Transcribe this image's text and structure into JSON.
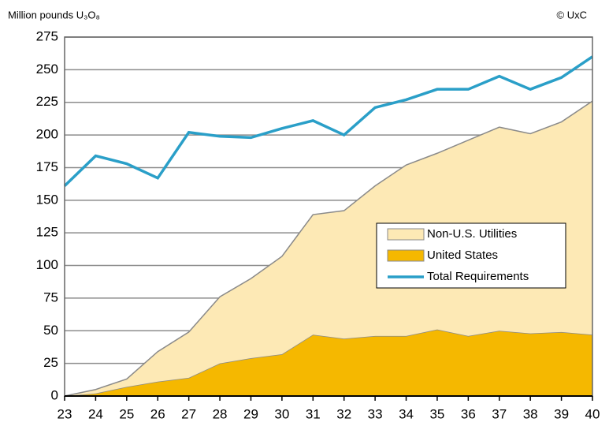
{
  "chart_data": {
    "type": "stacked-area-line",
    "y_label": "Million pounds U₃O₈",
    "source": "© UxC",
    "categories": [
      "23",
      "24",
      "25",
      "26",
      "27",
      "28",
      "29",
      "30",
      "31",
      "32",
      "33",
      "34",
      "35",
      "36",
      "37",
      "38",
      "39",
      "40"
    ],
    "series": [
      {
        "name": "United States",
        "kind": "area",
        "color": "#f5b800",
        "values": [
          0,
          2,
          7,
          11,
          14,
          25,
          29,
          32,
          47,
          44,
          46,
          46,
          51,
          46,
          50,
          48,
          49,
          47
        ]
      },
      {
        "name": "Non-U.S. Utilities",
        "kind": "area",
        "color": "#fde9b5",
        "values": [
          0,
          3,
          6,
          23,
          35,
          51,
          61,
          75,
          92,
          98,
          115,
          131,
          135,
          150,
          156,
          153,
          161,
          179
        ]
      },
      {
        "name": "Total Requirements",
        "kind": "line",
        "color": "#2a9fc8",
        "values": [
          161,
          184,
          178,
          167,
          202,
          199,
          198,
          205,
          211,
          200,
          221,
          227,
          235,
          235,
          245,
          235,
          244,
          260
        ]
      }
    ],
    "legend_order": [
      1,
      0,
      2
    ],
    "ylim": [
      0,
      275
    ],
    "yticks": [
      0,
      25,
      50,
      75,
      100,
      125,
      150,
      175,
      200,
      225,
      250,
      275
    ],
    "grid": true
  }
}
